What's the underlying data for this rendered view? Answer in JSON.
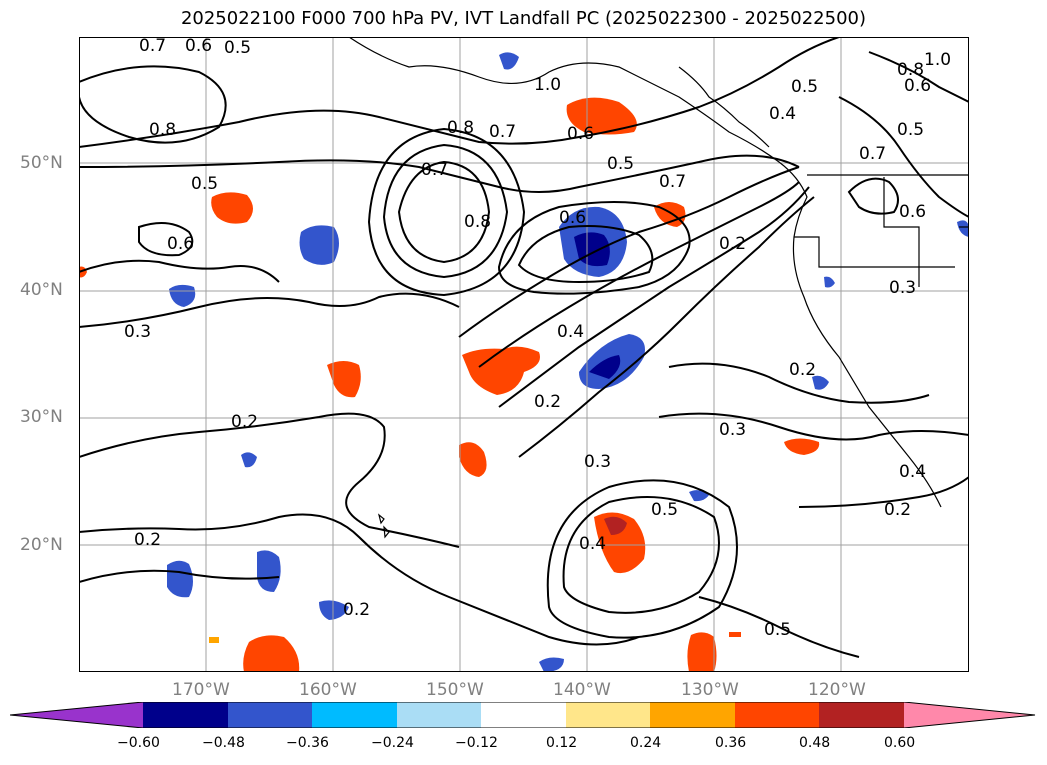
{
  "title": "2025022100 F000 700 hPa PV, IVT Landfall PC (2025022300 - 2025022500)",
  "axes": {
    "lat_labels": [
      "50°N",
      "40°N",
      "30°N",
      "20°N"
    ],
    "lon_labels": [
      "170°W",
      "160°W",
      "150°W",
      "140°W",
      "130°W",
      "120°W"
    ]
  },
  "contour_labels": [
    "0.7",
    "0.6",
    "0.5",
    "0.8",
    "1.0",
    "0.8",
    "0.7",
    "0.6",
    "0.5",
    "0.7",
    "0.6",
    "0.5",
    "0.4",
    "0.6",
    "0.5",
    "0.7",
    "0.8",
    "0.2",
    "0.4",
    "0.5",
    "0.7",
    "0.6",
    "0.3",
    "0.3",
    "0.2",
    "0.2",
    "0.3",
    "0.3",
    "0.2",
    "0.4",
    "0.4",
    "0.5",
    "0.2",
    "0.2",
    "0.2",
    "1.0",
    "0.8",
    "0.6",
    "0.5"
  ],
  "colorbar": {
    "tick_labels": [
      "−0.60",
      "−0.48",
      "−0.36",
      "−0.24",
      "−0.12",
      "0.12",
      "0.24",
      "0.36",
      "0.48",
      "0.60"
    ],
    "colors": [
      "#9933cc",
      "#00008b",
      "#3355cc",
      "#00bbff",
      "#aaddf5",
      "#ffffff",
      "#ffe68a",
      "#ffa500",
      "#ff4500",
      "#b22222",
      "#ff88aa"
    ]
  },
  "map": {
    "extent_lon": [
      -180,
      -110
    ],
    "extent_lat": [
      10,
      60
    ],
    "grid": true
  }
}
